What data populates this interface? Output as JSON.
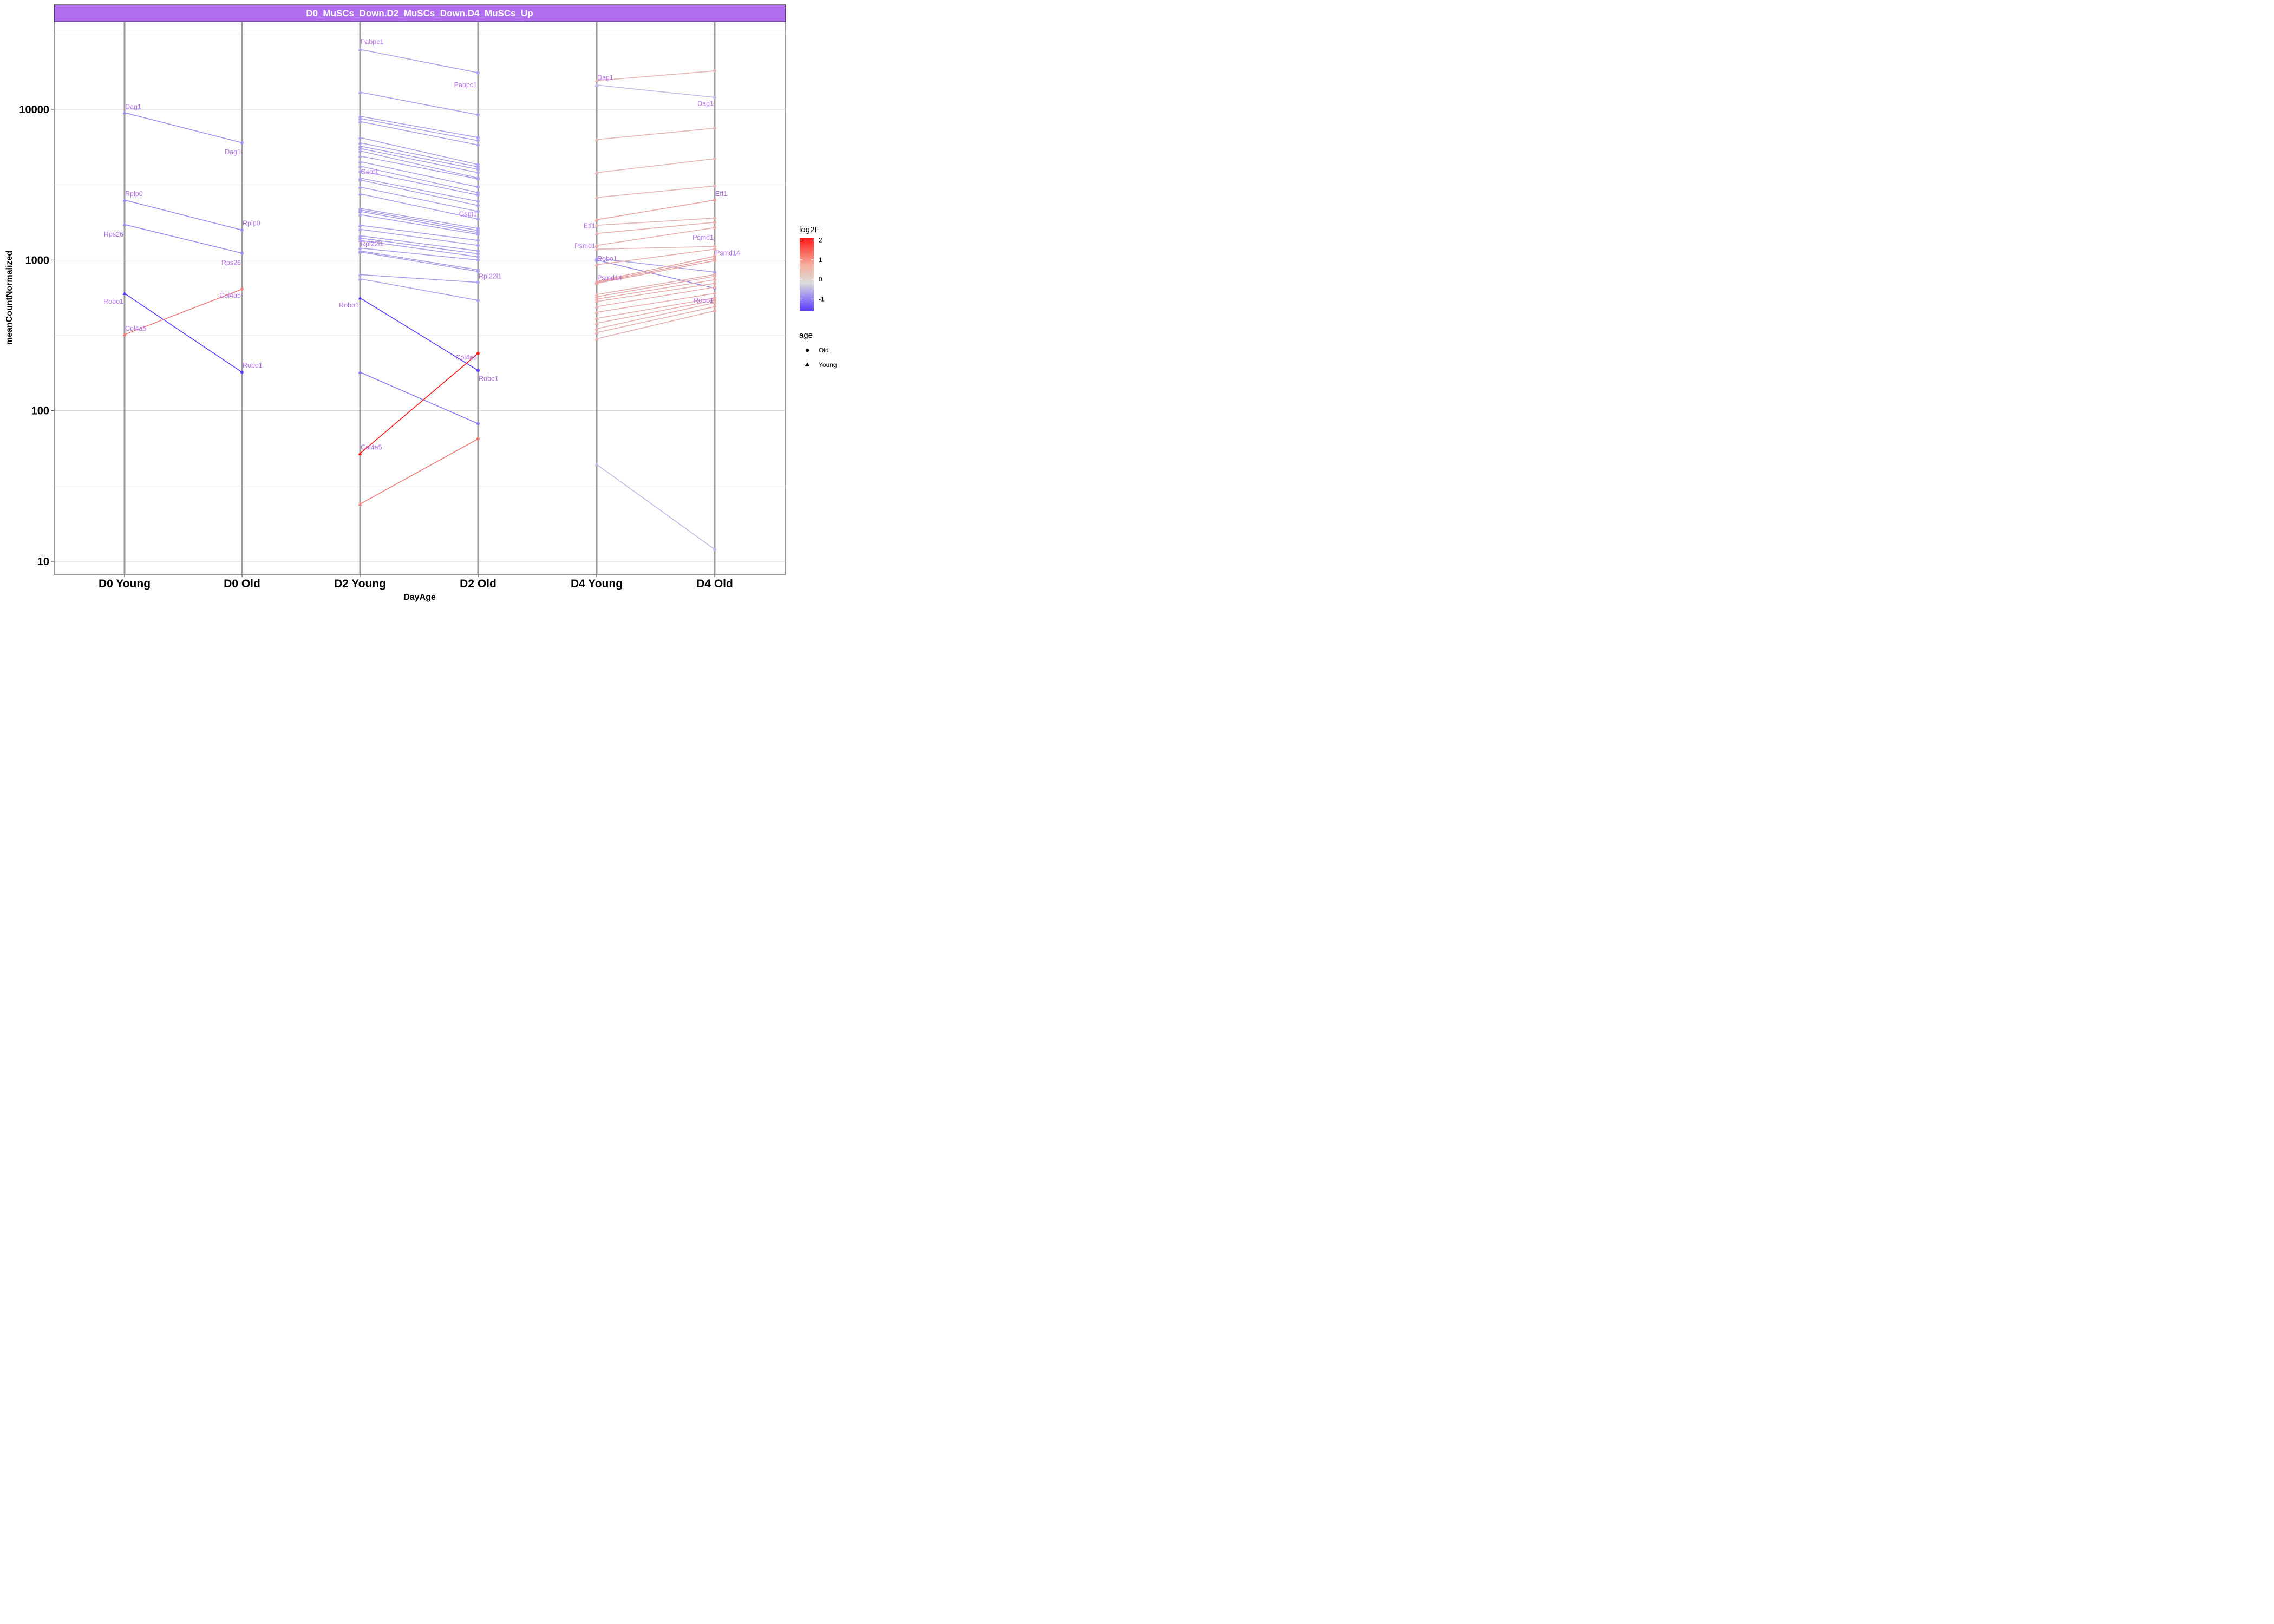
{
  "chart_data": {
    "type": "line",
    "title": "D0_MuSCs_Down.D2_MuSCs_Down.D4_MuSCs_Up",
    "xlabel": "DayAge",
    "ylabel": "meanCountNormalized",
    "y_scale": "log10",
    "ylim": [
      8.5,
      40000
    ],
    "yticks": [
      "10",
      "100",
      "1000",
      "10000"
    ],
    "categories": [
      "D0 Young",
      "D0 Old",
      "D2 Young",
      "D2 Old",
      "D4 Young",
      "D4 Old"
    ],
    "grid": true,
    "legend": {
      "position": "right",
      "color_title": "log2F",
      "color_ticks": [
        "2",
        "1",
        "0",
        "-1"
      ],
      "shape_title": "age",
      "shape_entries": [
        "Old",
        "Young"
      ]
    },
    "colors": {
      "strip": "#b16ff0",
      "label": "#b26fe6",
      "vline": "#9b9b9b",
      "gradient_low": "#5b3bff",
      "gradient_mid": "#dcdcdc",
      "gradient_high": "#ff1a1a"
    },
    "segments": [
      {
        "from": "D0 Young",
        "to": "D0 Old",
        "y1": 9500,
        "y2": 6000,
        "log2F": -0.8
      },
      {
        "from": "D0 Young",
        "to": "D0 Old",
        "y1": 2500,
        "y2": 1580,
        "log2F": -0.8
      },
      {
        "from": "D0 Young",
        "to": "D0 Old",
        "y1": 1720,
        "y2": 1110,
        "log2F": -0.8
      },
      {
        "from": "D0 Young",
        "to": "D0 Old",
        "y1": 600,
        "y2": 180,
        "log2F": -1.6
      },
      {
        "from": "D0 Young",
        "to": "D0 Old",
        "y1": 320,
        "y2": 640,
        "log2F": 1.0
      },
      {
        "from": "D2 Young",
        "to": "D2 Old",
        "y1": 25000,
        "y2": 17500,
        "log2F": -0.6
      },
      {
        "from": "D2 Young",
        "to": "D2 Old",
        "y1": 13000,
        "y2": 9200,
        "log2F": -0.6
      },
      {
        "from": "D2 Young",
        "to": "D2 Old",
        "y1": 9000,
        "y2": 6500,
        "log2F": -0.6
      },
      {
        "from": "D2 Young",
        "to": "D2 Old",
        "y1": 8700,
        "y2": 6200,
        "log2F": -0.6
      },
      {
        "from": "D2 Young",
        "to": "D2 Old",
        "y1": 8300,
        "y2": 5800,
        "log2F": -0.6
      },
      {
        "from": "D2 Young",
        "to": "D2 Old",
        "y1": 6500,
        "y2": 4300,
        "log2F": -0.6
      },
      {
        "from": "D2 Young",
        "to": "D2 Old",
        "y1": 6000,
        "y2": 4150,
        "log2F": -0.6
      },
      {
        "from": "D2 Young",
        "to": "D2 Old",
        "y1": 5700,
        "y2": 4000,
        "log2F": -0.6
      },
      {
        "from": "D2 Young",
        "to": "D2 Old",
        "y1": 5500,
        "y2": 3800,
        "log2F": -0.6
      },
      {
        "from": "D2 Young",
        "to": "D2 Old",
        "y1": 5300,
        "y2": 3500,
        "log2F": -0.6
      },
      {
        "from": "D2 Young",
        "to": "D2 Old",
        "y1": 4900,
        "y2": 3450,
        "log2F": -0.6
      },
      {
        "from": "D2 Young",
        "to": "D2 Old",
        "y1": 4500,
        "y2": 3050,
        "log2F": -0.6
      },
      {
        "from": "D2 Young",
        "to": "D2 Old",
        "y1": 4200,
        "y2": 2800,
        "log2F": -0.6
      },
      {
        "from": "D2 Young",
        "to": "D2 Old",
        "y1": 3900,
        "y2": 2700,
        "log2F": -0.6
      },
      {
        "from": "D2 Young",
        "to": "D2 Old",
        "y1": 3500,
        "y2": 2450,
        "log2F": -0.6
      },
      {
        "from": "D2 Young",
        "to": "D2 Old",
        "y1": 3400,
        "y2": 2300,
        "log2F": -0.6
      },
      {
        "from": "D2 Young",
        "to": "D2 Old",
        "y1": 3050,
        "y2": 2100,
        "log2F": -0.6
      },
      {
        "from": "D2 Young",
        "to": "D2 Old",
        "y1": 2750,
        "y2": 1870,
        "log2F": -0.6
      },
      {
        "from": "D2 Young",
        "to": "D2 Old",
        "y1": 2200,
        "y2": 1620,
        "log2F": -0.6
      },
      {
        "from": "D2 Young",
        "to": "D2 Old",
        "y1": 2150,
        "y2": 1570,
        "log2F": -0.6
      },
      {
        "from": "D2 Young",
        "to": "D2 Old",
        "y1": 2100,
        "y2": 1520,
        "log2F": -0.6
      },
      {
        "from": "D2 Young",
        "to": "D2 Old",
        "y1": 2000,
        "y2": 1480,
        "log2F": -0.6
      },
      {
        "from": "D2 Young",
        "to": "D2 Old",
        "y1": 1700,
        "y2": 1350,
        "log2F": -0.6
      },
      {
        "from": "D2 Young",
        "to": "D2 Old",
        "y1": 1600,
        "y2": 1250,
        "log2F": -0.6
      },
      {
        "from": "D2 Young",
        "to": "D2 Old",
        "y1": 1450,
        "y2": 1150,
        "log2F": -0.6
      },
      {
        "from": "D2 Young",
        "to": "D2 Old",
        "y1": 1400,
        "y2": 1100,
        "log2F": -0.6
      },
      {
        "from": "D2 Young",
        "to": "D2 Old",
        "y1": 1350,
        "y2": 1050,
        "log2F": -0.6
      },
      {
        "from": "D2 Young",
        "to": "D2 Old",
        "y1": 1200,
        "y2": 1000,
        "log2F": -0.6
      },
      {
        "from": "D2 Young",
        "to": "D2 Old",
        "y1": 1150,
        "y2": 860,
        "log2F": -0.6
      },
      {
        "from": "D2 Young",
        "to": "D2 Old",
        "y1": 1130,
        "y2": 840,
        "log2F": -0.6
      },
      {
        "from": "D2 Young",
        "to": "D2 Old",
        "y1": 800,
        "y2": 710,
        "log2F": -0.6
      },
      {
        "from": "D2 Young",
        "to": "D2 Old",
        "y1": 750,
        "y2": 540,
        "log2F": -0.6
      },
      {
        "from": "D2 Young",
        "to": "D2 Old",
        "y1": 560,
        "y2": 185,
        "log2F": -1.6
      },
      {
        "from": "D2 Young",
        "to": "D2 Old",
        "y1": 180,
        "y2": 82,
        "log2F": -1.0
      },
      {
        "from": "D2 Young",
        "to": "D2 Old",
        "y1": 52,
        "y2": 240,
        "log2F": 2.0
      },
      {
        "from": "D2 Young",
        "to": "D2 Old",
        "y1": 24,
        "y2": 65,
        "log2F": 1.0
      },
      {
        "from": "D4 Young",
        "to": "D4 Old",
        "y1": 15500,
        "y2": 18000,
        "log2F": 0.4
      },
      {
        "from": "D4 Young",
        "to": "D4 Old",
        "y1": 14500,
        "y2": 12000,
        "log2F": -0.35
      },
      {
        "from": "D4 Young",
        "to": "D4 Old",
        "y1": 6300,
        "y2": 7500,
        "log2F": 0.4
      },
      {
        "from": "D4 Young",
        "to": "D4 Old",
        "y1": 3800,
        "y2": 4700,
        "log2F": 0.4
      },
      {
        "from": "D4 Young",
        "to": "D4 Old",
        "y1": 2600,
        "y2": 3100,
        "log2F": 0.4
      },
      {
        "from": "D4 Young",
        "to": "D4 Old",
        "y1": 1850,
        "y2": 2500,
        "log2F": 0.6
      },
      {
        "from": "D4 Young",
        "to": "D4 Old",
        "y1": 1700,
        "y2": 1900,
        "log2F": 0.4
      },
      {
        "from": "D4 Young",
        "to": "D4 Old",
        "y1": 1500,
        "y2": 1780,
        "log2F": 0.5
      },
      {
        "from": "D4 Young",
        "to": "D4 Old",
        "y1": 1250,
        "y2": 1640,
        "log2F": 0.5
      },
      {
        "from": "D4 Young",
        "to": "D4 Old",
        "y1": 1180,
        "y2": 1230,
        "log2F": 0.4
      },
      {
        "from": "D4 Young",
        "to": "D4 Old",
        "y1": 1030,
        "y2": 830,
        "log2F": -0.6
      },
      {
        "from": "D4 Young",
        "to": "D4 Old",
        "y1": 1000,
        "y2": 650,
        "log2F": -0.8
      },
      {
        "from": "D4 Young",
        "to": "D4 Old",
        "y1": 930,
        "y2": 1180,
        "log2F": 0.5
      },
      {
        "from": "D4 Young",
        "to": "D4 Old",
        "y1": 720,
        "y2": 1060,
        "log2F": 0.6
      },
      {
        "from": "D4 Young",
        "to": "D4 Old",
        "y1": 710,
        "y2": 1020,
        "log2F": 0.6
      },
      {
        "from": "D4 Young",
        "to": "D4 Old",
        "y1": 700,
        "y2": 990,
        "log2F": 0.6
      },
      {
        "from": "D4 Young",
        "to": "D4 Old",
        "y1": 590,
        "y2": 800,
        "log2F": 0.5
      },
      {
        "from": "D4 Young",
        "to": "D4 Old",
        "y1": 570,
        "y2": 780,
        "log2F": 0.5
      },
      {
        "from": "D4 Young",
        "to": "D4 Old",
        "y1": 550,
        "y2": 740,
        "log2F": 0.5
      },
      {
        "from": "D4 Young",
        "to": "D4 Old",
        "y1": 530,
        "y2": 700,
        "log2F": 0.5
      },
      {
        "from": "D4 Young",
        "to": "D4 Old",
        "y1": 490,
        "y2": 660,
        "log2F": 0.5
      },
      {
        "from": "D4 Young",
        "to": "D4 Old",
        "y1": 450,
        "y2": 600,
        "log2F": 0.5
      },
      {
        "from": "D4 Young",
        "to": "D4 Old",
        "y1": 410,
        "y2": 560,
        "log2F": 0.5
      },
      {
        "from": "D4 Young",
        "to": "D4 Old",
        "y1": 380,
        "y2": 540,
        "log2F": 0.5
      },
      {
        "from": "D4 Young",
        "to": "D4 Old",
        "y1": 350,
        "y2": 520,
        "log2F": 0.5
      },
      {
        "from": "D4 Young",
        "to": "D4 Old",
        "y1": 330,
        "y2": 490,
        "log2F": 0.5
      },
      {
        "from": "D4 Young",
        "to": "D4 Old",
        "y1": 300,
        "y2": 460,
        "log2F": 0.5
      },
      {
        "from": "D4 Young",
        "to": "D4 Old",
        "y1": 44,
        "y2": 12,
        "log2F": -0.35
      }
    ],
    "gene_labels": [
      {
        "text": "Dag1",
        "category": "D0 Young",
        "y": 10400,
        "side": "right"
      },
      {
        "text": "Dag1",
        "category": "D0 Old",
        "y": 5200,
        "side": "left"
      },
      {
        "text": "Rplp0",
        "category": "D0 Young",
        "y": 2750,
        "side": "right"
      },
      {
        "text": "Rps26",
        "category": "D0 Young",
        "y": 1480,
        "side": "left"
      },
      {
        "text": "Rplp0",
        "category": "D0 Old",
        "y": 1750,
        "side": "right"
      },
      {
        "text": "Rps26",
        "category": "D0 Old",
        "y": 960,
        "side": "left"
      },
      {
        "text": "Robo1",
        "category": "D0 Young",
        "y": 530,
        "side": "left"
      },
      {
        "text": "Col4a5",
        "category": "D0 Old",
        "y": 580,
        "side": "left"
      },
      {
        "text": "Col4a5",
        "category": "D0 Young",
        "y": 350,
        "side": "right"
      },
      {
        "text": "Robo1",
        "category": "D0 Old",
        "y": 200,
        "side": "right"
      },
      {
        "text": "Pabpc1",
        "category": "D2 Young",
        "y": 28000,
        "side": "right"
      },
      {
        "text": "Pabpc1",
        "category": "D2 Old",
        "y": 14500,
        "side": "left"
      },
      {
        "text": "Gspt1",
        "category": "D2 Young",
        "y": 3850,
        "side": "right"
      },
      {
        "text": "Gspt1",
        "category": "D2 Old",
        "y": 2020,
        "side": "left"
      },
      {
        "text": "Rpl22l1",
        "category": "D2 Young",
        "y": 1280,
        "side": "right"
      },
      {
        "text": "Rpl22l1",
        "category": "D2 Old",
        "y": 780,
        "side": "right"
      },
      {
        "text": "Robo1",
        "category": "D2 Young",
        "y": 500,
        "side": "left"
      },
      {
        "text": "Col4a5",
        "category": "D2 Old",
        "y": 225,
        "side": "left"
      },
      {
        "text": "Robo1",
        "category": "D2 Old",
        "y": 163,
        "side": "right"
      },
      {
        "text": "Col4a5",
        "category": "D2 Young",
        "y": 57,
        "side": "right"
      },
      {
        "text": "Dag1",
        "category": "D4 Young",
        "y": 16200,
        "side": "right"
      },
      {
        "text": "Dag1",
        "category": "D4 Old",
        "y": 10900,
        "side": "left"
      },
      {
        "text": "Etf1",
        "category": "D4 Old",
        "y": 2750,
        "side": "right"
      },
      {
        "text": "Etf1",
        "category": "D4 Young",
        "y": 1680,
        "side": "left"
      },
      {
        "text": "Psmd1",
        "category": "D4 Old",
        "y": 1410,
        "side": "left"
      },
      {
        "text": "Psmd1",
        "category": "D4 Young",
        "y": 1240,
        "side": "left"
      },
      {
        "text": "Psmd14",
        "category": "D4 Old",
        "y": 1110,
        "side": "right"
      },
      {
        "text": "Robo1",
        "category": "D4 Young",
        "y": 1020,
        "side": "right"
      },
      {
        "text": "Psmd14",
        "category": "D4 Young",
        "y": 760,
        "side": "right"
      },
      {
        "text": "Robo1",
        "category": "D4 Old",
        "y": 540,
        "side": "left"
      }
    ]
  }
}
